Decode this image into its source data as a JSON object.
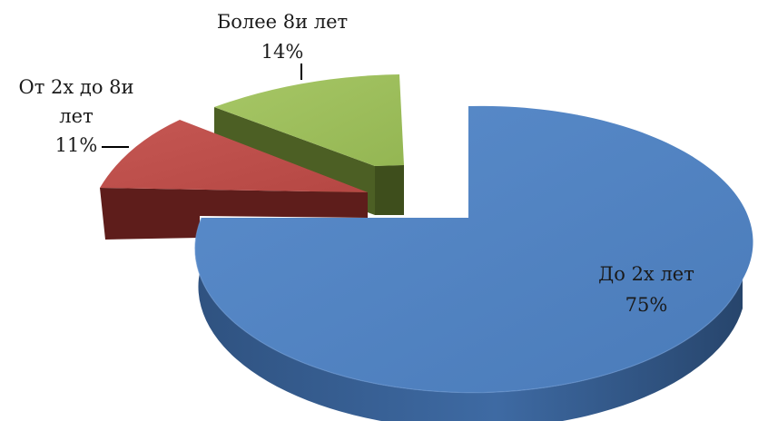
{
  "chart_data": {
    "type": "pie",
    "title": "",
    "slices": [
      {
        "label": "До 2х лет",
        "value": 75,
        "value_label": "75%",
        "color": "#4f81bd"
      },
      {
        "label": "От 2х до 8и лет",
        "value": 11,
        "value_label": "11%",
        "color": "#c0504d"
      },
      {
        "label": "Более 8и лет",
        "value": 14,
        "value_label": "14%",
        "color": "#9bbb59"
      }
    ],
    "style": "3d-exploded",
    "legend": "none"
  }
}
